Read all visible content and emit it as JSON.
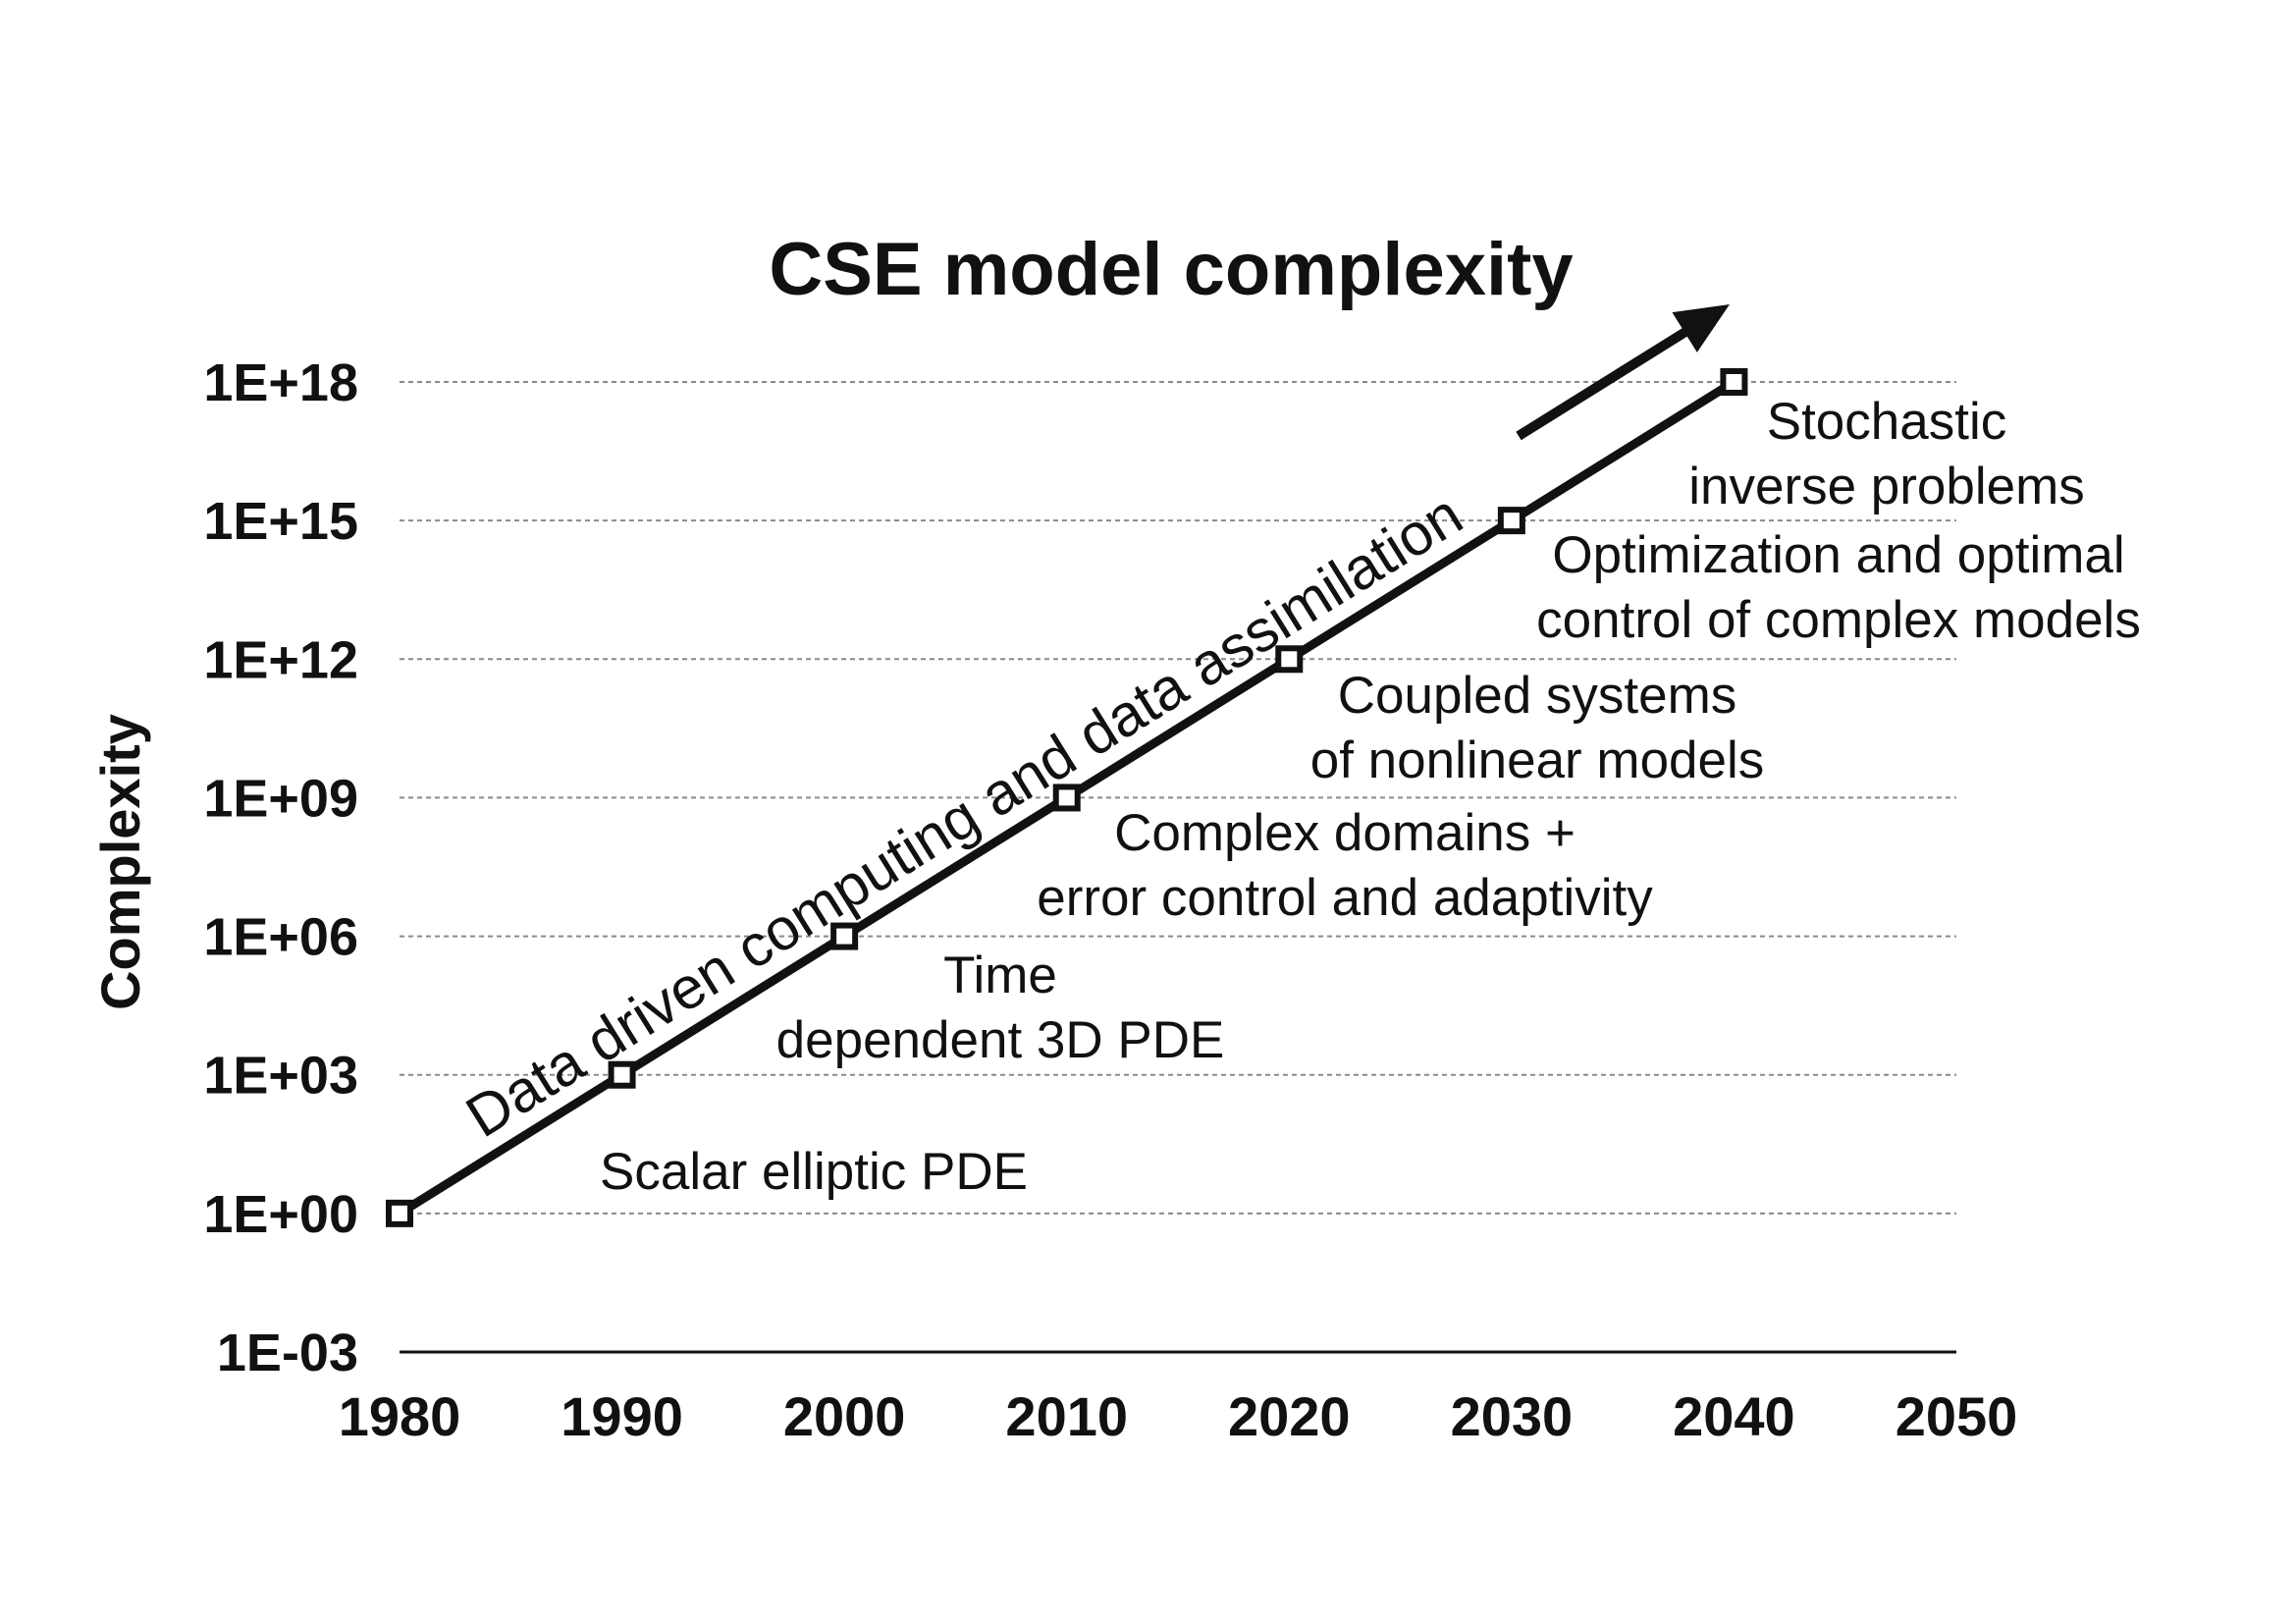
{
  "chart_data": {
    "type": "line",
    "title": "CSE model complexity",
    "xlabel": "",
    "ylabel": "Complexity",
    "yscale": "log10",
    "xlim": [
      1980,
      2050
    ],
    "ylim_exponent": [
      -3,
      18
    ],
    "x_ticks": [
      "1980",
      "1990",
      "2000",
      "2010",
      "2020",
      "2030",
      "2040",
      "2050"
    ],
    "y_ticks": [
      "1E-03",
      "1E+00",
      "1E+03",
      "1E+06",
      "1E+09",
      "1E+12",
      "1E+15",
      "1E+18"
    ],
    "grid": true,
    "series": [
      {
        "name": "CSE model complexity",
        "x": [
          1980,
          1990,
          2000,
          2010,
          2020,
          2030,
          2040
        ],
        "values": [
          1,
          1000,
          1000000,
          1000000000,
          1000000000000,
          1000000000000000,
          1000000000000000000
        ]
      }
    ],
    "annotations": [
      {
        "name": "scalar-elliptic-pde",
        "lines": [
          "Scalar elliptic PDE"
        ]
      },
      {
        "name": "time-dependent-3d-pde",
        "lines": [
          "Time",
          "dependent 3D PDE"
        ]
      },
      {
        "name": "complex-domains",
        "lines": [
          "Complex domains +",
          "error control and adaptivity"
        ]
      },
      {
        "name": "coupled-systems",
        "lines": [
          "Coupled systems",
          "of nonlinear models"
        ]
      },
      {
        "name": "optimization",
        "lines": [
          "Optimization and optimal",
          "control of complex models"
        ]
      },
      {
        "name": "stochastic",
        "lines": [
          "Stochastic",
          "inverse problems"
        ]
      }
    ],
    "trend_arrow_label": "Data driven computing and data assimilation"
  }
}
